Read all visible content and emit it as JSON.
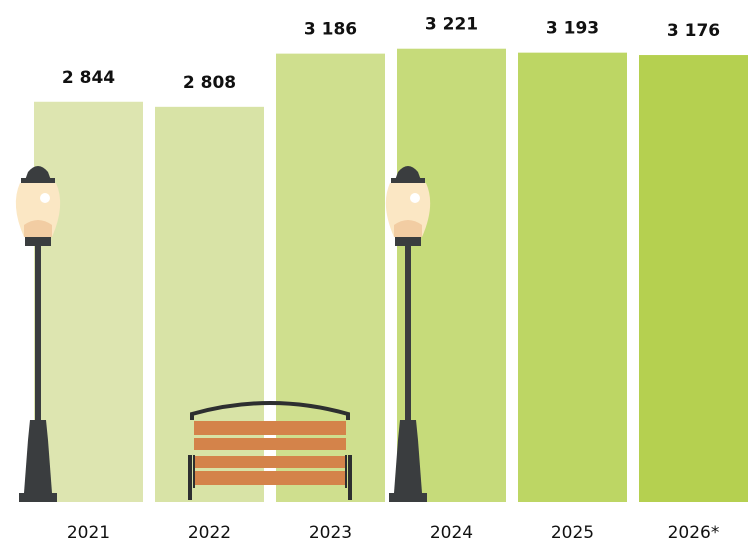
{
  "chart_data": {
    "type": "bar",
    "categories": [
      "2021",
      "2022",
      "2023",
      "2024",
      "2025",
      "2026*"
    ],
    "values": [
      2844,
      2808,
      3186,
      3221,
      3193,
      3176
    ],
    "value_labels": [
      "2 844",
      "2 808",
      "3 186",
      "3 221",
      "3 193",
      "3 176"
    ],
    "colors": [
      "#dde5b0",
      "#d8e3a6",
      "#cfdf8e",
      "#c6db7a",
      "#bdd664",
      "#b5d050"
    ],
    "ylim": [
      0,
      3560
    ]
  }
}
